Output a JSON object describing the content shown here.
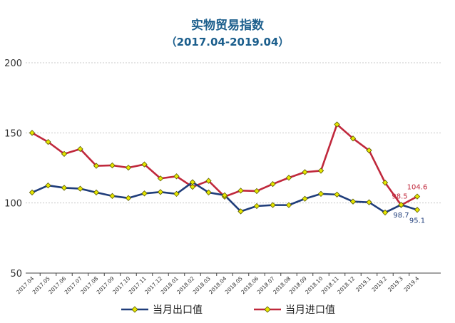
{
  "chart_data": {
    "type": "line",
    "title": "实物贸易指数",
    "subtitle": "（2017.04-2019.04）",
    "xlabel": "",
    "ylabel": "",
    "ylim": [
      50,
      200
    ],
    "yticks": [
      50,
      100,
      150,
      200
    ],
    "grid": true,
    "legend_position": "bottom",
    "categories": [
      "2017.04",
      "2017.05",
      "2017.06",
      "2017.07",
      "2017.08",
      "2017.09",
      "2017.10",
      "2017.11",
      "2017.12",
      "2018.01",
      "2018.02",
      "2018.03",
      "2018.04",
      "2018.05",
      "2018.06",
      "2018.07",
      "2018.08",
      "2018.09",
      "2018.10",
      "2018.11",
      "2018.12",
      "2019.1",
      "2019.2",
      "2019.3",
      "2019.4"
    ],
    "series": [
      {
        "name": "当月出口值",
        "color": "#1f3d7a",
        "values": [
          107.5,
          112.5,
          110.8,
          110.2,
          107.5,
          105.0,
          103.5,
          106.8,
          107.8,
          106.5,
          114.8,
          107.5,
          105.5,
          94.0,
          97.8,
          98.5,
          98.5,
          103.0,
          106.5,
          106.0,
          101.0,
          100.5,
          93.2,
          98.7,
          95.1
        ]
      },
      {
        "name": "当月进口值",
        "color": "#c0283c",
        "values": [
          150.0,
          143.5,
          135.0,
          138.5,
          126.5,
          126.8,
          125.2,
          127.5,
          117.5,
          119.0,
          111.5,
          115.8,
          104.5,
          108.8,
          108.5,
          113.5,
          118.0,
          122.0,
          123.0,
          156.0,
          146.0,
          137.5,
          114.5,
          98.5,
          104.6
        ]
      }
    ],
    "annotations": [
      {
        "series": 0,
        "index": 23,
        "text": "98.7",
        "color": "#1f3d7a"
      },
      {
        "series": 0,
        "index": 24,
        "text": "95.1",
        "color": "#1f3d7a"
      },
      {
        "series": 1,
        "index": 23,
        "text": "98.5",
        "color": "#c0283c"
      },
      {
        "series": 1,
        "index": 24,
        "text": "104.6",
        "color": "#c0283c"
      }
    ],
    "marker_color": "#e6e600"
  }
}
